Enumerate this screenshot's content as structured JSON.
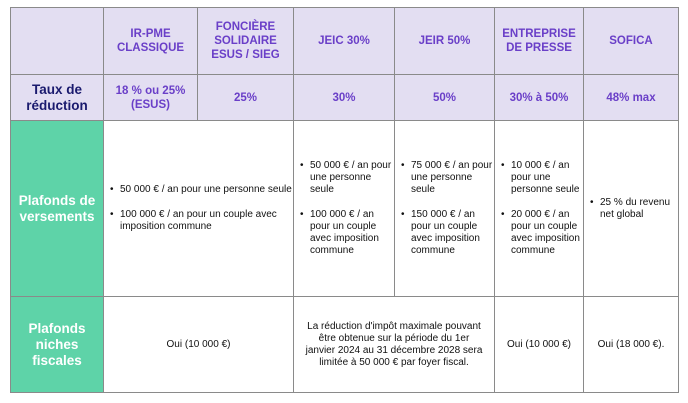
{
  "headers": [
    "IR-PME CLASSIQUE",
    "FONCIÈRE SOLIDAIRE ESUS / SIEG",
    "JEIC 30%",
    "JEIR 50%",
    "ENTREPRISE DE PRESSE",
    "SOFICA"
  ],
  "rows": {
    "taux": {
      "label": "Taux de réduction",
      "values": [
        "18 % ou  25% (ESUS)",
        "25%",
        "30%",
        "50%",
        "30% à 50%",
        "48% max"
      ]
    },
    "plafonds": {
      "label": "Plafonds de versements",
      "irpme_foncier": [
        "50 000 € / an pour une personne seule",
        "100 000 € / an pour un couple avec imposition commune"
      ],
      "jeic": [
        "50 000 € / an pour une personne seule",
        "100 000 € / an pour un couple avec imposition commune"
      ],
      "jeir": [
        "75 000 € / an pour une personne seule",
        "150 000 € / an pour un couple avec imposition commune"
      ],
      "presse": [
        "10 000 € / an pour une personne seule",
        "20 000 € / an pour un couple avec imposition commune"
      ],
      "sofica": [
        "25 % du revenu net global"
      ]
    },
    "niches": {
      "label": "Plafonds niches fiscales",
      "irpme_foncier": "Oui (10 000 €)",
      "jei": "La réduction d'impôt maximale pouvant être obtenue sur la période du 1er janvier 2024 au 31 décembre 2028 sera limitée à 50 000 € par foyer fiscal.",
      "presse": "Oui (10 000 €)",
      "sofica": "Oui (18 000 €)."
    }
  },
  "colors": {
    "header_bg": "#e3def2",
    "header_text": "#6a3fc8",
    "row_label_bg": "#5ed3a8",
    "row_label_text": "#ffffff",
    "first_row_label_text": "#1a1a6e"
  }
}
